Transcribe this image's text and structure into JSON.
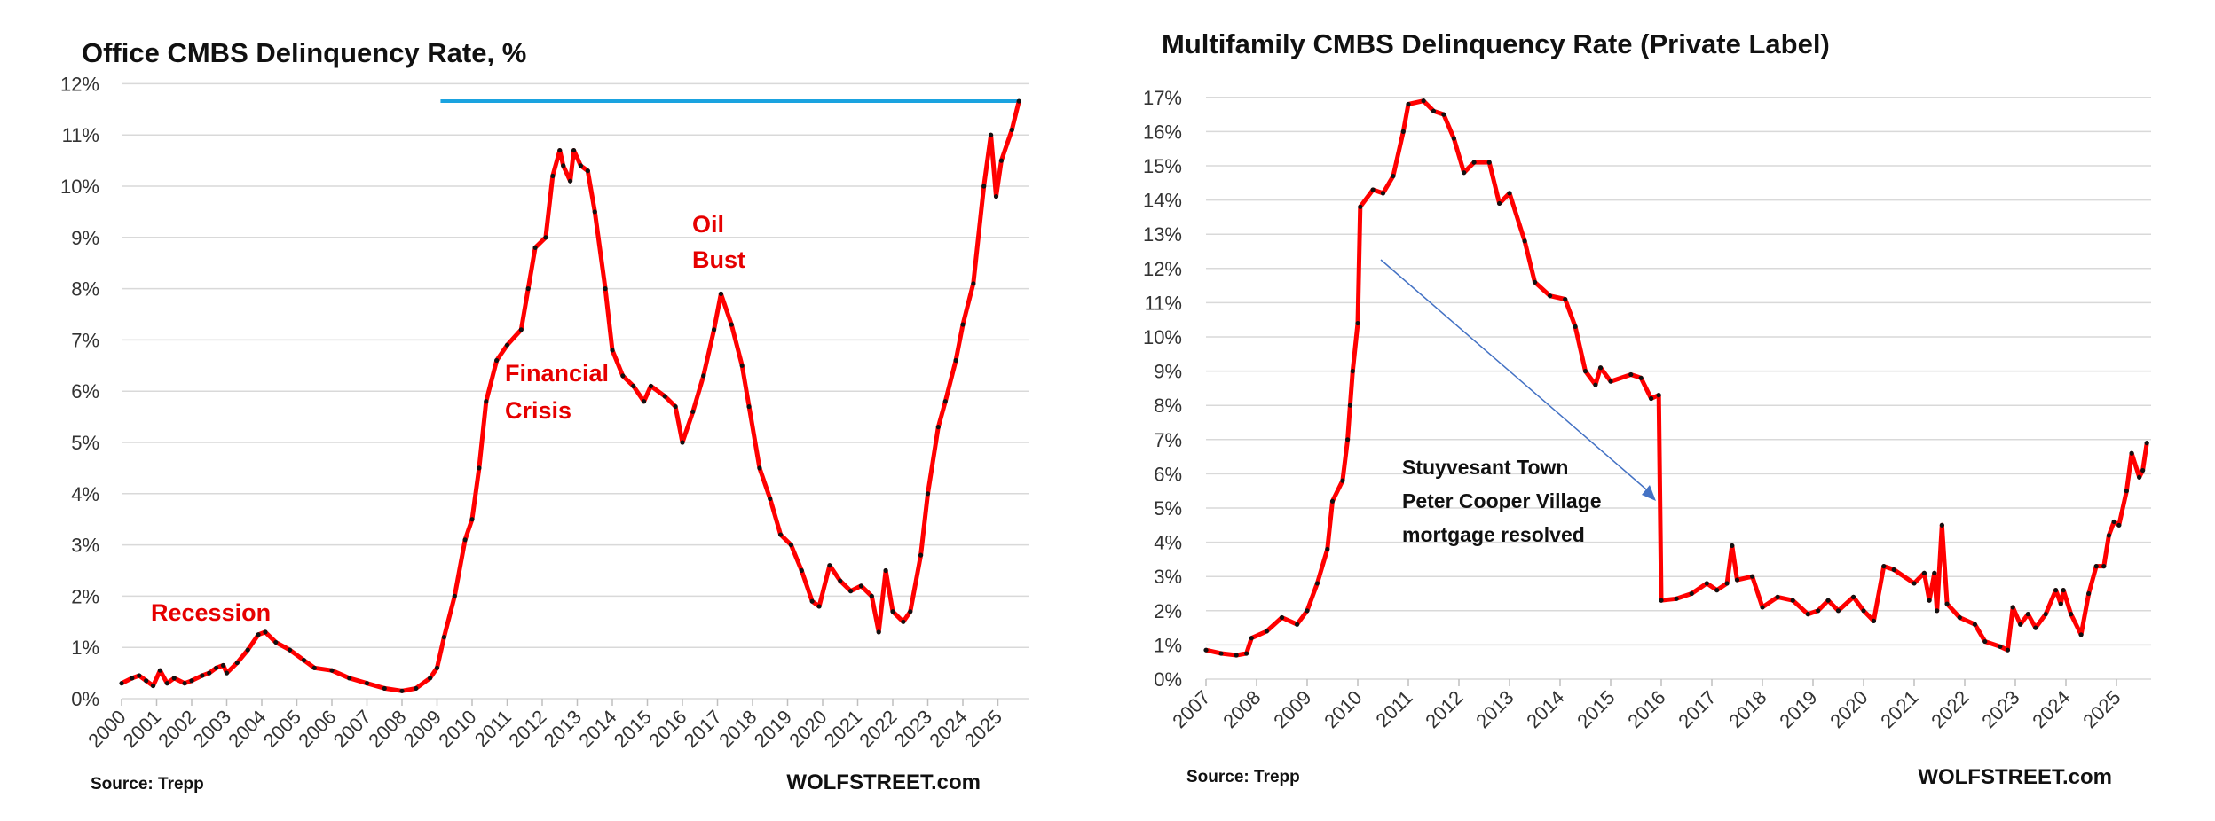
{
  "chart_data": [
    {
      "type": "line",
      "title": "Office CMBS Delinquency Rate, %",
      "xlim": [
        2000,
        2025.6
      ],
      "ylim": [
        0,
        12
      ],
      "y_tick_format": "%",
      "y_ticks": [
        0,
        1,
        2,
        3,
        4,
        5,
        6,
        7,
        8,
        9,
        10,
        11,
        12
      ],
      "x_ticks": [
        2000,
        2001,
        2002,
        2003,
        2004,
        2005,
        2006,
        2007,
        2008,
        2009,
        2010,
        2011,
        2012,
        2013,
        2014,
        2015,
        2016,
        2017,
        2018,
        2019,
        2020,
        2021,
        2022,
        2023,
        2024,
        2025
      ],
      "grid": true,
      "colors": {
        "line": "#ff0000",
        "markers": "#111111",
        "reference_line": "#1aa3e0"
      },
      "reference_line": {
        "value": 11.66,
        "x_start": 2009.1
      },
      "x": [
        2000.0,
        2000.3,
        2000.5,
        2000.7,
        2000.9,
        2001.1,
        2001.3,
        2001.5,
        2001.8,
        2002.0,
        2002.3,
        2002.5,
        2002.7,
        2002.9,
        2003.0,
        2003.3,
        2003.6,
        2003.9,
        2004.1,
        2004.4,
        2004.8,
        2005.2,
        2005.5,
        2006.0,
        2006.5,
        2007.0,
        2007.5,
        2008.0,
        2008.4,
        2008.8,
        2009.0,
        2009.2,
        2009.5,
        2009.8,
        2010.0,
        2010.2,
        2010.4,
        2010.7,
        2011.0,
        2011.4,
        2011.6,
        2011.8,
        2012.1,
        2012.3,
        2012.5,
        2012.6,
        2012.8,
        2012.9,
        2013.1,
        2013.3,
        2013.5,
        2013.8,
        2014.0,
        2014.3,
        2014.6,
        2014.9,
        2015.1,
        2015.5,
        2015.8,
        2016.0,
        2016.3,
        2016.6,
        2016.9,
        2017.1,
        2017.4,
        2017.7,
        2017.9,
        2018.2,
        2018.5,
        2018.8,
        2019.1,
        2019.4,
        2019.7,
        2019.9,
        2020.2,
        2020.5,
        2020.8,
        2021.1,
        2021.4,
        2021.6,
        2021.8,
        2022.0,
        2022.3,
        2022.5,
        2022.8,
        2023.0,
        2023.3,
        2023.5,
        2023.8,
        2024.0,
        2024.3,
        2024.6,
        2024.8,
        2024.95,
        2025.1,
        2025.4,
        2025.6
      ],
      "y": [
        0.3,
        0.4,
        0.45,
        0.35,
        0.25,
        0.55,
        0.3,
        0.4,
        0.3,
        0.35,
        0.45,
        0.5,
        0.6,
        0.65,
        0.5,
        0.7,
        0.95,
        1.25,
        1.3,
        1.1,
        0.95,
        0.75,
        0.6,
        0.55,
        0.4,
        0.3,
        0.2,
        0.15,
        0.2,
        0.4,
        0.6,
        1.2,
        2.0,
        3.1,
        3.5,
        4.5,
        5.8,
        6.6,
        6.9,
        7.2,
        8.0,
        8.8,
        9.0,
        10.2,
        10.7,
        10.4,
        10.1,
        10.7,
        10.4,
        10.3,
        9.5,
        8.0,
        6.8,
        6.3,
        6.1,
        5.8,
        6.1,
        5.9,
        5.7,
        5.0,
        5.6,
        6.3,
        7.2,
        7.9,
        7.3,
        6.5,
        5.7,
        4.5,
        3.9,
        3.2,
        3.0,
        2.5,
        1.9,
        1.8,
        2.6,
        2.3,
        2.1,
        2.2,
        2.0,
        1.3,
        2.5,
        1.7,
        1.5,
        1.7,
        2.8,
        4.0,
        5.3,
        5.8,
        6.6,
        7.3,
        8.1,
        10.0,
        11.0,
        9.8,
        10.5,
        11.1,
        11.66
      ],
      "annotations": [
        "Recession",
        "Financial",
        "Crisis",
        "Oil",
        "Bust"
      ],
      "source": "Source: Trepp",
      "brand": "WOLFSTREET.com"
    },
    {
      "type": "line",
      "title": "Multifamily CMBS Delinquency Rate (Private Label)",
      "xlim": [
        2007,
        2025.6
      ],
      "ylim": [
        0,
        17
      ],
      "y_tick_format": "%",
      "y_ticks": [
        0,
        1,
        2,
        3,
        4,
        5,
        6,
        7,
        8,
        9,
        10,
        11,
        12,
        13,
        14,
        15,
        16,
        17
      ],
      "x_ticks": [
        2007,
        2008,
        2009,
        2010,
        2011,
        2012,
        2013,
        2014,
        2015,
        2016,
        2017,
        2018,
        2019,
        2020,
        2021,
        2022,
        2023,
        2024,
        2025
      ],
      "grid": true,
      "colors": {
        "line": "#ff0000",
        "markers": "#111111",
        "arrow": "#4472c4"
      },
      "x": [
        2007.0,
        2007.3,
        2007.6,
        2007.8,
        2007.9,
        2008.2,
        2008.5,
        2008.8,
        2009.0,
        2009.2,
        2009.4,
        2009.5,
        2009.7,
        2009.8,
        2009.85,
        2009.9,
        2010.0,
        2010.05,
        2010.3,
        2010.5,
        2010.7,
        2010.9,
        2011.0,
        2011.3,
        2011.5,
        2011.7,
        2011.9,
        2012.1,
        2012.3,
        2012.6,
        2012.8,
        2013.0,
        2013.3,
        2013.5,
        2013.8,
        2014.1,
        2014.3,
        2014.5,
        2014.7,
        2014.8,
        2015.0,
        2015.4,
        2015.6,
        2015.8,
        2015.95,
        2016.0,
        2016.3,
        2016.6,
        2016.9,
        2017.1,
        2017.3,
        2017.4,
        2017.5,
        2017.8,
        2018.0,
        2018.3,
        2018.6,
        2018.9,
        2019.1,
        2019.3,
        2019.5,
        2019.8,
        2020.0,
        2020.2,
        2020.4,
        2020.6,
        2021.0,
        2021.2,
        2021.3,
        2021.4,
        2021.45,
        2021.55,
        2021.65,
        2021.9,
        2022.2,
        2022.4,
        2022.7,
        2022.85,
        2022.95,
        2023.1,
        2023.25,
        2023.4,
        2023.6,
        2023.8,
        2023.9,
        2023.95,
        2024.1,
        2024.3,
        2024.45,
        2024.6,
        2024.75,
        2024.85,
        2024.95,
        2025.05,
        2025.2,
        2025.3,
        2025.45,
        2025.52,
        2025.6
      ],
      "y": [
        0.85,
        0.75,
        0.7,
        0.75,
        1.2,
        1.4,
        1.8,
        1.6,
        2.0,
        2.8,
        3.8,
        5.2,
        5.8,
        7.0,
        8.0,
        9.0,
        10.4,
        13.8,
        14.3,
        14.2,
        14.7,
        16.0,
        16.8,
        16.9,
        16.6,
        16.5,
        15.8,
        14.8,
        15.1,
        15.1,
        13.9,
        14.2,
        12.8,
        11.6,
        11.2,
        11.1,
        10.3,
        9.0,
        8.6,
        9.1,
        8.7,
        8.9,
        8.8,
        8.2,
        8.3,
        2.3,
        2.35,
        2.5,
        2.8,
        2.6,
        2.8,
        3.9,
        2.9,
        3.0,
        2.1,
        2.4,
        2.3,
        1.9,
        2.0,
        2.3,
        2.0,
        2.4,
        2.0,
        1.7,
        3.3,
        3.2,
        2.8,
        3.1,
        2.3,
        3.1,
        2.0,
        4.5,
        2.2,
        1.8,
        1.6,
        1.1,
        0.95,
        0.85,
        2.1,
        1.6,
        1.9,
        1.5,
        1.9,
        2.6,
        2.2,
        2.6,
        1.9,
        1.3,
        2.5,
        3.3,
        3.3,
        4.2,
        4.6,
        4.5,
        5.5,
        6.6,
        5.9,
        6.1,
        6.9
      ],
      "annotations": [
        "Stuyvesant Town",
        "Peter Cooper Village",
        "mortgage resolved"
      ],
      "source": "Source: Trepp",
      "brand": "WOLFSTREET.com"
    }
  ]
}
